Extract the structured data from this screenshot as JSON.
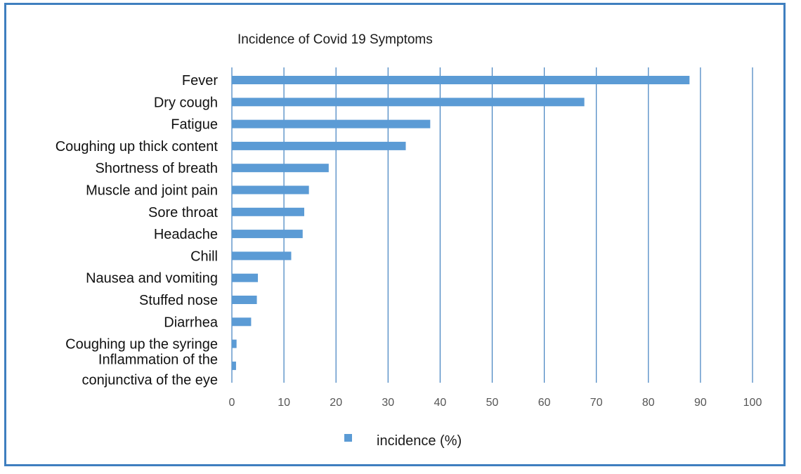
{
  "chart_data": {
    "type": "bar",
    "orientation": "horizontal",
    "title": "Incidence of Covid 19 Symptoms",
    "categories": [
      "Fever",
      "Dry cough",
      "Fatigue",
      "Coughing up thick content",
      "Shortness of breath",
      "Muscle and joint pain",
      "Sore throat",
      "Headache",
      "Chill",
      "Nausea and vomiting",
      "Stuffed nose",
      "Diarrhea",
      "Coughing up the syringe",
      [
        "Inflammation of the",
        "conjunctiva of the eye"
      ]
    ],
    "series": [
      {
        "name": "incidence (%)",
        "color": "#5b9bd5",
        "values": [
          87.9,
          67.7,
          38.1,
          33.4,
          18.6,
          14.8,
          13.9,
          13.6,
          11.4,
          5.0,
          4.8,
          3.7,
          0.9,
          0.8
        ]
      }
    ],
    "xlim": [
      0,
      100
    ],
    "xticks": [
      0,
      10,
      20,
      30,
      40,
      50,
      60,
      70,
      80,
      90,
      100
    ],
    "grid": "vertical",
    "legend": "bottom"
  }
}
